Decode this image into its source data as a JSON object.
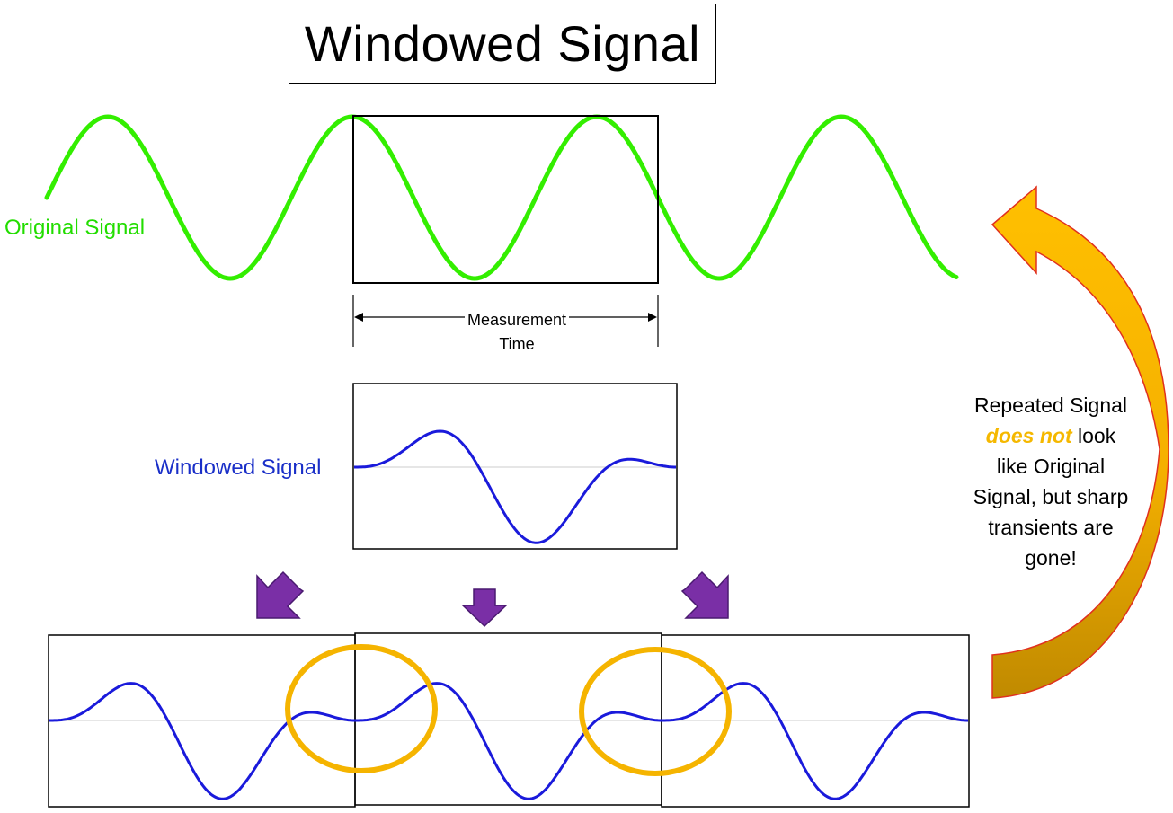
{
  "title": "Windowed Signal",
  "labels": {
    "original_signal": "Original Signal",
    "windowed_signal": "Windowed Signal",
    "measurement_line1": "Measurement",
    "measurement_line2": "Time"
  },
  "note": {
    "line1": "Repeated Signal",
    "emphasis": "does not",
    "line2_rest": " look",
    "line3": "like Original",
    "line4": "Signal, but sharp",
    "line5": "transients are",
    "line6": "gone!"
  },
  "colors": {
    "original_signal": "#33ee00",
    "windowed_signal": "#1a1adb",
    "circle": "#f5b400",
    "arrow_down": "#7a2fa6",
    "curved_arrow_top": "#ffc000",
    "curved_arrow_bottom": "#c89000",
    "curved_arrow_outline": "#e0301e",
    "emphasis_text": "#f5b800"
  },
  "icons": [
    "arrow-down-left-icon",
    "arrow-down-icon",
    "arrow-down-right-icon",
    "curved-return-arrow-icon"
  ]
}
